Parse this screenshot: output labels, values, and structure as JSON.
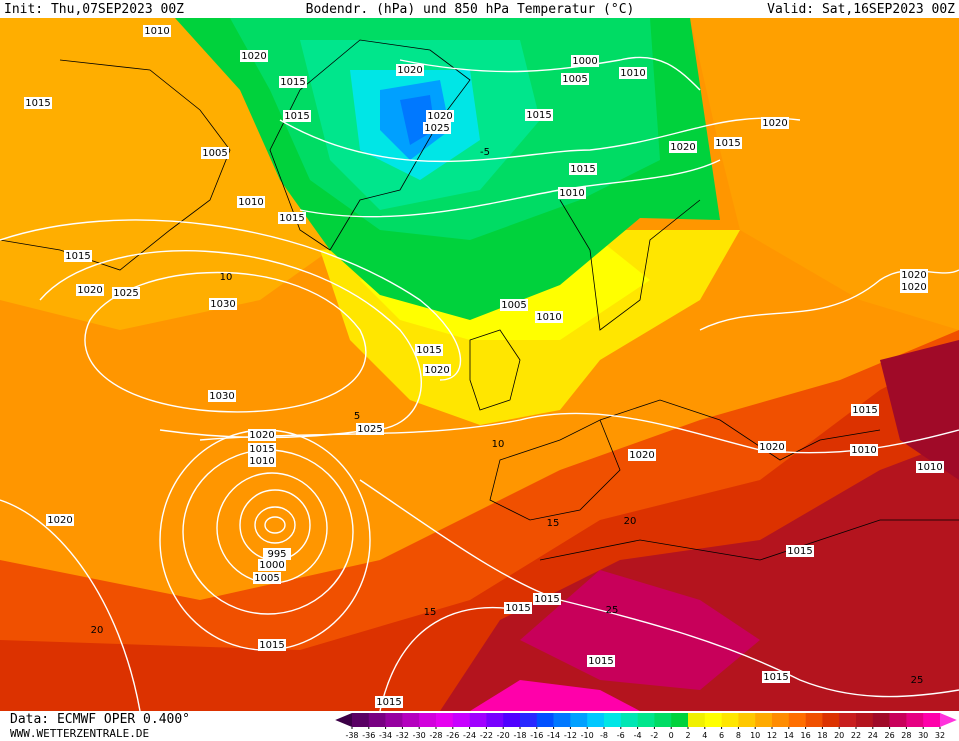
{
  "header": {
    "init": "Init: Thu,07SEP2023 00Z",
    "title": "Bodendr. (hPa) und 850 hPa Temperatur (°C)",
    "valid": "Valid: Sat,16SEP2023 00Z"
  },
  "footer": {
    "data": "Data: ECMWF OPER 0.400°",
    "site": "WWW.WETTERZENTRALE.DE"
  },
  "colorbar": {
    "ticks": [
      -38,
      -36,
      -34,
      -32,
      -30,
      -28,
      -26,
      -24,
      -22,
      -20,
      -18,
      -16,
      -14,
      -12,
      -10,
      -8,
      -6,
      -4,
      -2,
      0,
      2,
      4,
      6,
      8,
      10,
      12,
      14,
      16,
      18,
      20,
      22,
      24,
      26,
      28,
      30,
      32
    ],
    "colors": [
      "#3c0046",
      "#5a0064",
      "#780082",
      "#9600a0",
      "#b400be",
      "#d200dc",
      "#e600f0",
      "#c800ff",
      "#a000ff",
      "#7800ff",
      "#5000ff",
      "#2828ff",
      "#0050ff",
      "#0078ff",
      "#00a0ff",
      "#00c8ff",
      "#00e6e6",
      "#00e6b4",
      "#00e68c",
      "#00dc64",
      "#00d23c",
      "#f0f000",
      "#ffff00",
      "#ffe600",
      "#ffc800",
      "#ffaa00",
      "#ff8c00",
      "#ff6e00",
      "#f05000",
      "#dc3200",
      "#c81e1e",
      "#b4141e",
      "#a00a28",
      "#c8005a",
      "#e60082",
      "#ff00aa",
      "#ff32dc"
    ]
  },
  "isobar_labels": [
    1010,
    1020,
    1015,
    1015,
    1020,
    1020,
    1025,
    1000,
    1005,
    1010,
    1015,
    1005,
    1010,
    1015,
    1020,
    1015,
    1020,
    1015,
    1010,
    1005,
    1010,
    1015,
    1020,
    1025,
    1030,
    1030,
    1020,
    1015,
    1010,
    995,
    1000,
    1005,
    1025,
    1020,
    1015,
    1015,
    1020,
    1020,
    1020,
    1010,
    1015,
    1010,
    1020,
    1020,
    1015,
    1015,
    1015,
    1015,
    1015,
    1015,
    1015
  ],
  "temp_labels": [
    10,
    5,
    -5,
    10,
    15,
    15,
    20,
    25,
    20,
    25
  ]
}
